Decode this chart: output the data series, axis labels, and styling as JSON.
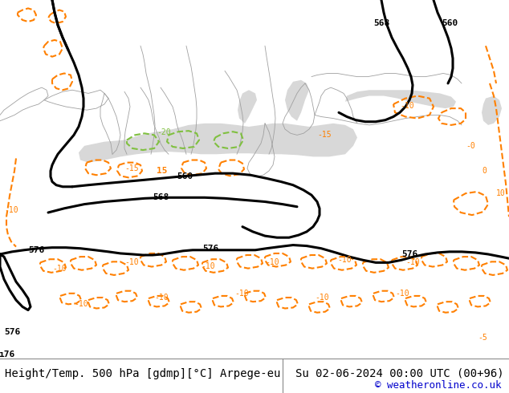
{
  "title_left": "Height/Temp. 500 hPa [gdmp][°C] Arpege-eu",
  "title_right": "Su 02-06-2024 00:00 UTC (00+96)",
  "copyright": "© weatheronline.co.uk",
  "land_color": "#c8e8a0",
  "sea_color": "#d8d8d8",
  "black": "#000000",
  "orange": "#ff8000",
  "green_dash": "#80c040",
  "border_color": "#a0a0a0",
  "white": "#ffffff",
  "title_fontsize": 10,
  "copyright_fontsize": 9
}
